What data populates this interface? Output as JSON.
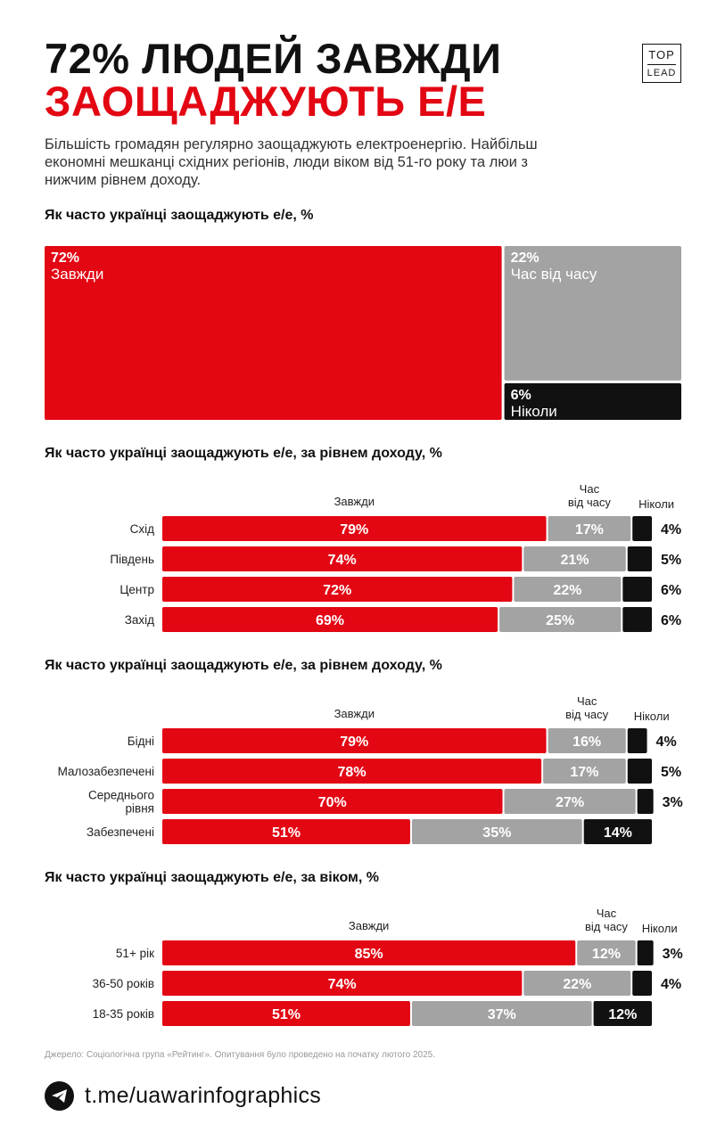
{
  "header": {
    "title_line1": "72% ЛЮДЕЙ ЗАВЖДИ",
    "title_line2": "ЗАОЩАДЖУЮТЬ Е/Е",
    "logo_top": "TOP",
    "logo_bottom": "LEAD"
  },
  "subtitle": "Більшість громадян регулярно заощаджують електроенергію. Найбільш економні мешканці східних регіонів, люди віком від 51-го року та люи з нижчим рівнем доходу.",
  "colors": {
    "always": "#e30613",
    "sometimes": "#a3a3a3",
    "never": "#111111"
  },
  "chart_data": [
    {
      "type": "treemap",
      "title": "Як часто українці заощаджують е/е, %",
      "items": [
        {
          "label": "Завжди",
          "value": 72,
          "value_label": "72%"
        },
        {
          "label": "Час від часу",
          "value": 22,
          "value_label": "22%"
        },
        {
          "label": "Ніколи",
          "value": 6,
          "value_label": "6%"
        }
      ]
    },
    {
      "type": "bar",
      "stacked": true,
      "orientation": "horizontal",
      "title": "Як часто українці заощаджують е/е, за рівнем доходу, %",
      "column_headers": [
        "Завжди",
        "Час\nвід часу",
        "Ніколи"
      ],
      "categories": [
        "Схід",
        "Південь",
        "Центр",
        "Захід"
      ],
      "series": [
        {
          "name": "Завжди",
          "values": [
            79,
            74,
            72,
            69
          ]
        },
        {
          "name": "Час від часу",
          "values": [
            17,
            21,
            22,
            25
          ]
        },
        {
          "name": "Ніколи",
          "values": [
            4,
            5,
            6,
            6
          ]
        }
      ]
    },
    {
      "type": "bar",
      "stacked": true,
      "orientation": "horizontal",
      "title": "Як часто українці заощаджують е/е,  за рівнем доходу, %",
      "column_headers": [
        "Завжди",
        "Час\nвід часу",
        "Ніколи"
      ],
      "categories": [
        "Бідні",
        "Малозабезпечені",
        "Середнього\nрівня",
        "Забезпечені"
      ],
      "series": [
        {
          "name": "Завжди",
          "values": [
            79,
            78,
            70,
            51
          ]
        },
        {
          "name": "Час від часу",
          "values": [
            16,
            17,
            27,
            35
          ]
        },
        {
          "name": "Ніколи",
          "values": [
            4,
            5,
            3,
            14
          ]
        }
      ]
    },
    {
      "type": "bar",
      "stacked": true,
      "orientation": "horizontal",
      "title": "Як часто українці заощаджують е/е, за віком, %",
      "column_headers": [
        "Завжди",
        "Час\nвід часу",
        "Ніколи"
      ],
      "categories": [
        "51+ рік",
        "36-50 років",
        "18-35 років"
      ],
      "series": [
        {
          "name": "Завжди",
          "values": [
            85,
            74,
            51
          ]
        },
        {
          "name": "Час від часу",
          "values": [
            12,
            22,
            37
          ]
        },
        {
          "name": "Ніколи",
          "values": [
            3,
            4,
            12
          ]
        }
      ]
    }
  ],
  "source": "Джерело: Соціологічна група «Рейтинг». Опитування було проведено на початку лютого 2025.",
  "footer": {
    "icon": "telegram-icon",
    "link": "t.me/uawarinfographics"
  }
}
